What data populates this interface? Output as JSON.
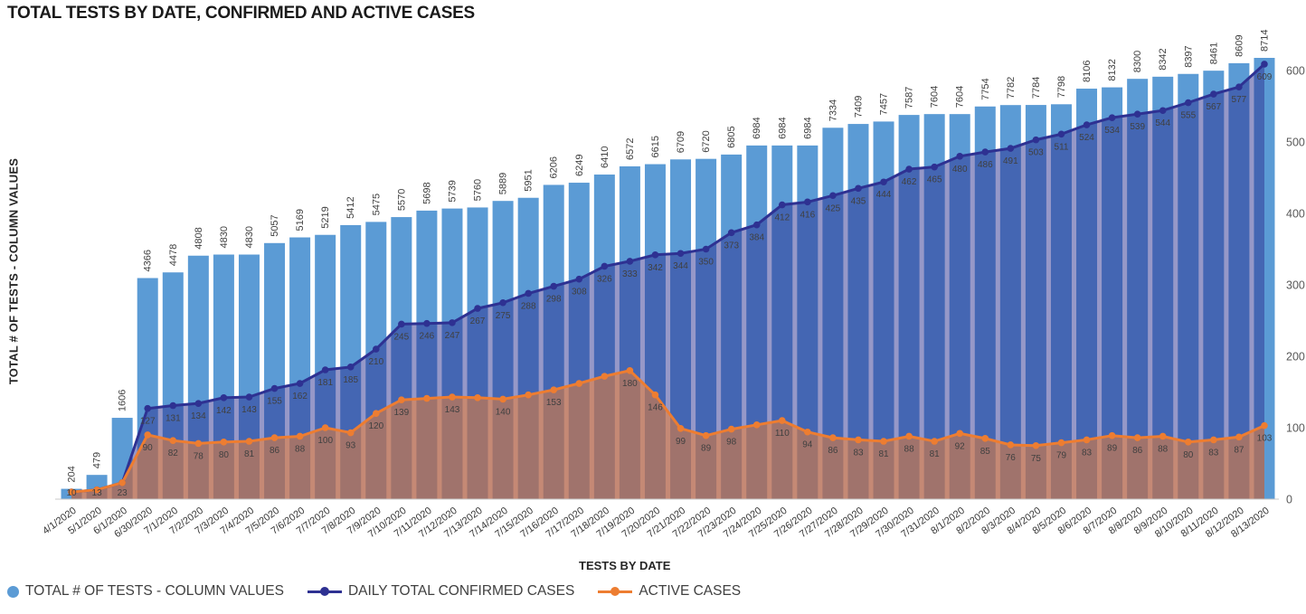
{
  "chart_data": {
    "type": "bar",
    "title": "TOTAL TESTS BY DATE, CONFIRMED AND ACTIVE CASES",
    "xlabel": "TESTS BY DATE",
    "ylabel": "TOTAL # OF TESTS - COLUMN VALUES",
    "right_axis_range": [
      0,
      600
    ],
    "right_axis_ticks": [
      0,
      100,
      200,
      300,
      400,
      500,
      600
    ],
    "grid": false,
    "legend_position": "bottom-left",
    "categories": [
      "4/1/2020",
      "5/1/2020",
      "6/1/2020",
      "6/30/2020",
      "7/1/2020",
      "7/2/2020",
      "7/3/2020",
      "7/4/2020",
      "7/5/2020",
      "7/6/2020",
      "7/7/2020",
      "7/8/2020",
      "7/9/2020",
      "7/10/2020",
      "7/11/2020",
      "7/12/2020",
      "7/13/2020",
      "7/14/2020",
      "7/15/2020",
      "7/16/2020",
      "7/17/2020",
      "7/18/2020",
      "7/19/2020",
      "7/20/2020",
      "7/21/2020",
      "7/22/2020",
      "7/23/2020",
      "7/24/2020",
      "7/25/2020",
      "7/26/2020",
      "7/27/2020",
      "7/28/2020",
      "7/29/2020",
      "7/30/2020",
      "7/31/2020",
      "8/1/2020",
      "8/2/2020",
      "8/3/2020",
      "8/4/2020",
      "8/5/2020",
      "8/6/2020",
      "8/7/2020",
      "8/8/2020",
      "8/9/2020",
      "8/10/2020",
      "8/11/2020",
      "8/12/2020",
      "8/13/2020"
    ],
    "series": [
      {
        "name": "TOTAL # OF TESTS - COLUMN VALUES",
        "type": "bar",
        "color": "#5B9BD5",
        "values": [
          204,
          479,
          1606,
          4366,
          4478,
          4808,
          4830,
          4830,
          5057,
          5169,
          5219,
          5412,
          5475,
          5570,
          5698,
          5739,
          5760,
          5889,
          5951,
          6206,
          6249,
          6410,
          6572,
          6615,
          6709,
          6720,
          6805,
          6984,
          6984,
          6984,
          7334,
          7409,
          7457,
          7587,
          7604,
          7604,
          7754,
          7782,
          7784,
          7798,
          8106,
          8132,
          8300,
          8342,
          8397,
          8461,
          8609,
          8714
        ]
      },
      {
        "name": "DAILY TOTAL CONFIRMED CASES",
        "type": "line",
        "area_fill": true,
        "color": "#2E3192",
        "fill_opacity": 0.5,
        "values": [
          10,
          13,
          23,
          127,
          131,
          134,
          142,
          143,
          155,
          162,
          181,
          185,
          210,
          245,
          246,
          247,
          267,
          275,
          288,
          298,
          308,
          326,
          333,
          342,
          344,
          350,
          373,
          384,
          412,
          416,
          425,
          435,
          444,
          462,
          465,
          480,
          486,
          491,
          503,
          511,
          524,
          534,
          539,
          544,
          555,
          567,
          577,
          609
        ],
        "hidden_label_indices": []
      },
      {
        "name": "ACTIVE CASES",
        "type": "line",
        "area_fill": true,
        "color": "#ED7D31",
        "fill_opacity": 0.55,
        "values": [
          10,
          13,
          23,
          90,
          82,
          78,
          80,
          81,
          86,
          88,
          100,
          93,
          120,
          139,
          141,
          143,
          142,
          140,
          146,
          153,
          162,
          172,
          180,
          146,
          99,
          89,
          98,
          104,
          110,
          94,
          86,
          83,
          81,
          88,
          81,
          92,
          85,
          76,
          75,
          79,
          83,
          89,
          86,
          88,
          80,
          83,
          87,
          103
        ],
        "hidden_label_indices": [
          0,
          1,
          2,
          14,
          16,
          18,
          20,
          21,
          27
        ]
      }
    ]
  },
  "legend": {
    "items": [
      {
        "label": "TOTAL # OF TESTS - COLUMN VALUES",
        "marker": "circle",
        "color": "#5B9BD5"
      },
      {
        "label": "DAILY TOTAL CONFIRMED CASES",
        "marker": "line-dot",
        "color": "#2E3192"
      },
      {
        "label": "ACTIVE CASES",
        "marker": "line-dot",
        "color": "#ED7D31"
      }
    ]
  }
}
